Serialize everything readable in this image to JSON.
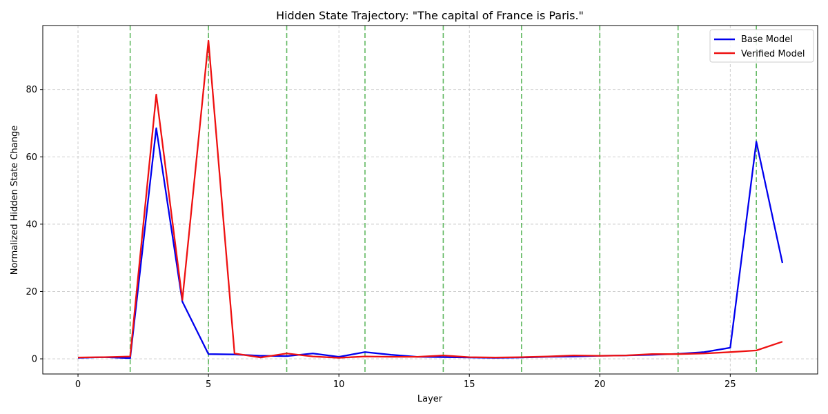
{
  "chart_data": {
    "type": "line",
    "title": "Hidden State Trajectory: \"The capital of France is Paris.\"",
    "xlabel": "Layer",
    "ylabel": "Normalized Hidden State Change",
    "xlim": [
      -1.35,
      28.35
    ],
    "ylim": [
      -4.5,
      99
    ],
    "xticks": [
      0,
      5,
      10,
      15,
      20,
      25
    ],
    "yticks": [
      0,
      20,
      40,
      60,
      80
    ],
    "grid": true,
    "legend_position": "top-right",
    "vertical_markers": [
      2,
      5,
      8,
      11,
      14,
      17,
      20,
      23,
      26
    ],
    "colors": {
      "base": "#0000ee",
      "verified": "#ee1111",
      "markers": "#2ca02c",
      "grid": "#c8c8c8"
    },
    "x": [
      0,
      1,
      2,
      3,
      4,
      5,
      6,
      7,
      8,
      9,
      10,
      11,
      12,
      13,
      14,
      15,
      16,
      17,
      18,
      19,
      20,
      21,
      22,
      23,
      24,
      25,
      26,
      27
    ],
    "series": [
      {
        "name": "Base Model",
        "color": "#0000ee",
        "values": [
          0.3,
          0.5,
          0.2,
          68.5,
          17.0,
          1.4,
          1.3,
          0.9,
          0.8,
          1.6,
          0.6,
          2.0,
          1.2,
          0.6,
          0.5,
          0.4,
          0.3,
          0.4,
          0.6,
          0.7,
          0.9,
          1.0,
          1.2,
          1.5,
          2.0,
          3.3,
          64.5,
          28.5
        ]
      },
      {
        "name": "Verified Model",
        "color": "#ee1111",
        "values": [
          0.4,
          0.5,
          0.7,
          78.5,
          17.5,
          94.5,
          1.6,
          0.4,
          1.6,
          0.7,
          0.3,
          0.7,
          0.6,
          0.6,
          1.0,
          0.5,
          0.4,
          0.5,
          0.7,
          1.0,
          0.9,
          1.0,
          1.4,
          1.4,
          1.6,
          2.0,
          2.5,
          5.1
        ]
      }
    ]
  }
}
